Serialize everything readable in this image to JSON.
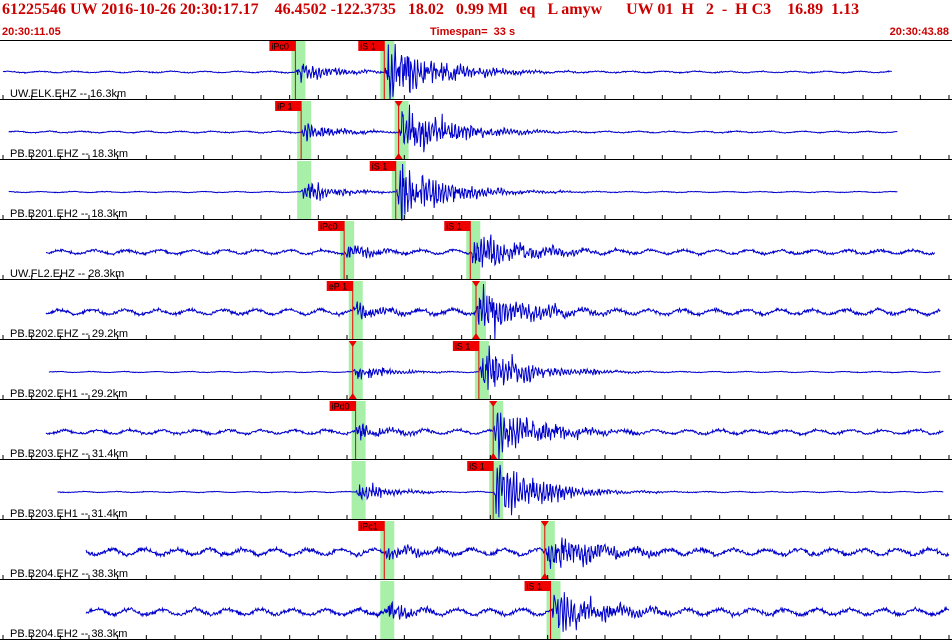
{
  "header": {
    "title": "61225546 UW 2016-10-26 20:30:17.17    46.4502 -122.3735   18.02   0.99 Ml   eq   L amyw      UW 01  H   2  -  H C3    16.89  1.13",
    "time_start": "20:30:11.05",
    "timespan": "Timespan=  33 s",
    "time_end": "20:30:43.88"
  },
  "colors": {
    "title": "#cc0000",
    "trace": "#0000cc",
    "pick_flag": "#ee0000",
    "pick_window": "#a8f0a8",
    "separator": "#000000"
  },
  "chart_data": {
    "type": "line",
    "x_unit": "s",
    "x_range": [
      0,
      33
    ],
    "tick_spacing_s": 1,
    "traces": [
      {
        "label": "UW.ELK.EHZ -- 16.3km",
        "start": 0.0,
        "end": 31.0,
        "noise": 0.03,
        "amp": 1.0,
        "arrivals": [
          {
            "phase": "P",
            "label": "iPc0",
            "t": 10.2,
            "mark": true
          },
          {
            "phase": "S",
            "label": "iS 1",
            "t": 13.3,
            "mark": true
          }
        ]
      },
      {
        "label": "PB.B201.EHZ -- 18.3km",
        "start": 0.2,
        "end": 31.2,
        "noise": 0.03,
        "amp": 0.8,
        "arrivals": [
          {
            "phase": "P",
            "label": "iP 1",
            "t": 10.4,
            "mark": true
          },
          {
            "phase": "S",
            "label": "",
            "t": 13.8,
            "mark": true
          }
        ]
      },
      {
        "label": "PB.B201.EH2 -- 18.3km",
        "start": 0.2,
        "end": 31.2,
        "noise": 0.02,
        "amp": 0.9,
        "arrivals": [
          {
            "phase": "P",
            "label": "",
            "t": 10.4,
            "mark": false
          },
          {
            "phase": "S",
            "label": "iS 1",
            "t": 13.7,
            "mark": true
          }
        ]
      },
      {
        "label": "UW.FL2.EHZ -- 28.3km",
        "start": 1.5,
        "end": 32.5,
        "noise": 0.08,
        "amp": 0.65,
        "arrivals": [
          {
            "phase": "P",
            "label": "iPc0",
            "t": 11.9,
            "mark": true
          },
          {
            "phase": "S",
            "label": "iS 1",
            "t": 16.3,
            "mark": true
          }
        ]
      },
      {
        "label": "PB.B202.EHZ -- 29.2km",
        "start": 1.5,
        "end": 32.7,
        "noise": 0.1,
        "amp": 0.75,
        "arrivals": [
          {
            "phase": "P",
            "label": "eP 1",
            "t": 12.2,
            "mark": true
          },
          {
            "phase": "S",
            "label": "",
            "t": 16.5,
            "mark": true
          }
        ]
      },
      {
        "label": "PB.B202.EH1 -- 29.2km",
        "start": 1.6,
        "end": 32.7,
        "noise": 0.02,
        "amp": 0.7,
        "arrivals": [
          {
            "phase": "P",
            "label": "",
            "t": 12.2,
            "mark": true
          },
          {
            "phase": "S",
            "label": "iS 1",
            "t": 16.6,
            "mark": true
          }
        ]
      },
      {
        "label": "PB.B203.EHZ -- 31.4km",
        "start": 1.5,
        "end": 32.8,
        "noise": 0.08,
        "amp": 0.75,
        "arrivals": [
          {
            "phase": "P",
            "label": "iPd0",
            "t": 12.3,
            "mark": true
          },
          {
            "phase": "S",
            "label": "",
            "t": 17.1,
            "mark": true
          }
        ]
      },
      {
        "label": "PB.B203.EH1 -- 31.4km",
        "start": 1.9,
        "end": 32.8,
        "noise": 0.02,
        "amp": 0.8,
        "arrivals": [
          {
            "phase": "P",
            "label": "",
            "t": 12.3,
            "mark": false
          },
          {
            "phase": "S",
            "label": "iS 1",
            "t": 17.1,
            "mark": true
          }
        ]
      },
      {
        "label": "PB.B204.EHZ -- 38.3km",
        "start": 2.9,
        "end": 33.0,
        "noise": 0.12,
        "amp": 0.65,
        "arrivals": [
          {
            "phase": "P",
            "label": "iPc1",
            "t": 13.3,
            "mark": true
          },
          {
            "phase": "S",
            "label": "",
            "t": 18.9,
            "mark": true
          }
        ]
      },
      {
        "label": "PB.B204.EH2 -- 38.3km",
        "start": 2.9,
        "end": 33.0,
        "noise": 0.12,
        "amp": 0.7,
        "arrivals": [
          {
            "phase": "P",
            "label": "",
            "t": 13.3,
            "mark": false
          },
          {
            "phase": "S",
            "label": "iS 1",
            "t": 19.1,
            "mark": true
          }
        ]
      }
    ]
  }
}
